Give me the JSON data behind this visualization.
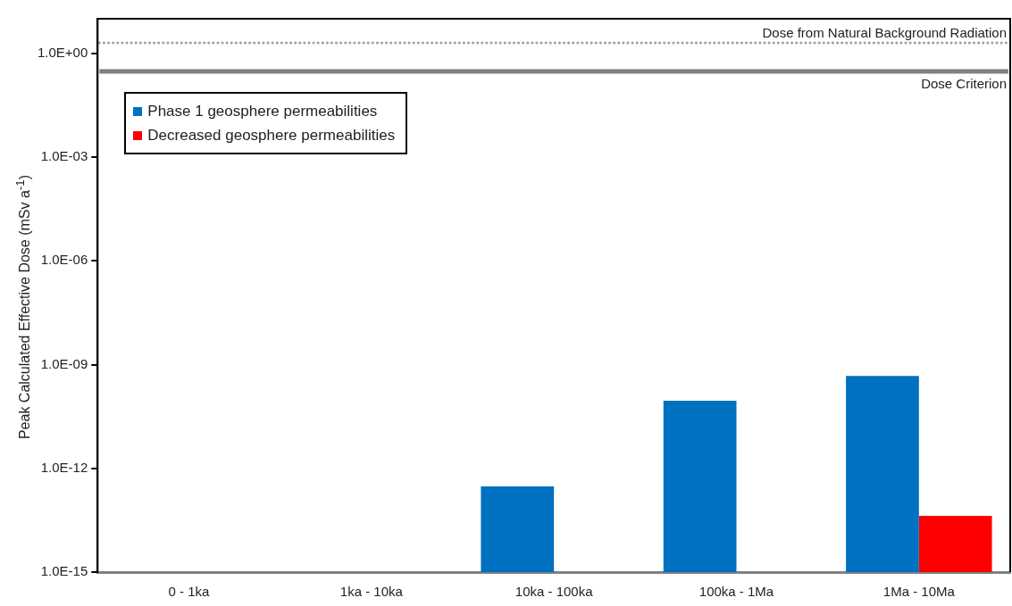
{
  "chart_data": {
    "type": "bar",
    "ylabel": "Peak Calculated Effective Dose (mSv a$^{-1}$)",
    "categories": [
      "0 - 1ka",
      "1ka - 10ka",
      "10ka - 100ka",
      "100ka - 1Ma",
      "1Ma - 10Ma"
    ],
    "series": [
      {
        "name": "Phase 1 geosphere permeabilities",
        "color": "#0070c0",
        "values": [
          null,
          null,
          3e-13,
          9e-11,
          4.7e-10
        ]
      },
      {
        "name": "Decreased geosphere permeabilities",
        "color": "#ff0000",
        "values": [
          null,
          null,
          null,
          null,
          4.2e-14
        ]
      }
    ],
    "log": true,
    "ylim": [
      1e-15,
      10
    ],
    "yticks": [
      {
        "value": 1e-15,
        "label": "1.0E-15"
      },
      {
        "value": 1e-12,
        "label": "1.0E-12"
      },
      {
        "value": 1e-09,
        "label": "1.0E-09"
      },
      {
        "value": 1e-06,
        "label": "1.0E-06"
      },
      {
        "value": 0.001,
        "label": "1.0E-03"
      },
      {
        "value": 1,
        "label": "1.0E+00"
      }
    ],
    "ref_lines": [
      {
        "axis": "y",
        "value": 2,
        "label": "Dose from Natural Background Radiation",
        "color": "#a0a0a0",
        "line_style": "dotted"
      },
      {
        "axis": "y",
        "value": 0.3,
        "label": "Dose Criterion",
        "color": "#808080",
        "line_style": "solid"
      }
    ],
    "grid": false,
    "legend": "top left"
  }
}
